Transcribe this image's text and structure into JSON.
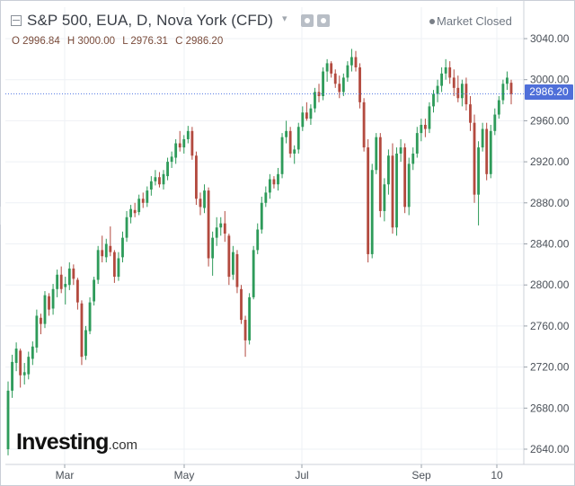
{
  "header": {
    "title": "S&P 500, EUA, D, Nova York (CFD)",
    "status": "Market Closed"
  },
  "ohlc": {
    "open": "O 2996.84",
    "high": "H 3000.00",
    "low": "L 2976.31",
    "close": "C 2986.20"
  },
  "last_price_label": "2986.20",
  "logo": {
    "main": "Investing",
    "suffix": ".com"
  },
  "colors": {
    "up": "#2e9b5a",
    "down": "#b34a3f",
    "grid": "#eef1f5",
    "last_price_line": "#5b7ee5",
    "badge": "#4f6fd9"
  },
  "chart_data": {
    "type": "candlestick",
    "title": "S&P 500, EUA, D, Nova York (CFD)",
    "ylim": [
      2630,
      3060
    ],
    "y_ticks": [
      3040,
      3000,
      2960,
      2920,
      2880,
      2840,
      2800,
      2760,
      2720,
      2680,
      2640
    ],
    "y_tick_labels": [
      "3040.00",
      "3000.00",
      "2960.00",
      "2920.00",
      "2880.00",
      "2840.00",
      "2800.00",
      "2760.00",
      "2720.00",
      "2680.00",
      "2640.00"
    ],
    "x_ticks": [
      "Mar",
      "May",
      "Jul",
      "Sep",
      "10"
    ],
    "grid": true,
    "last_close": 2986.2,
    "ohlc": [
      [
        2640,
        2706,
        2634,
        2697
      ],
      [
        2697,
        2732,
        2690,
        2725
      ],
      [
        2724,
        2744,
        2716,
        2738
      ],
      [
        2736,
        2738,
        2700,
        2712
      ],
      [
        2712,
        2724,
        2703,
        2715
      ],
      [
        2713,
        2735,
        2708,
        2730
      ],
      [
        2728,
        2745,
        2722,
        2740
      ],
      [
        2739,
        2776,
        2734,
        2770
      ],
      [
        2768,
        2772,
        2752,
        2762
      ],
      [
        2762,
        2794,
        2758,
        2790
      ],
      [
        2789,
        2792,
        2770,
        2776
      ],
      [
        2777,
        2801,
        2771,
        2796
      ],
      [
        2796,
        2815,
        2788,
        2810
      ],
      [
        2810,
        2818,
        2792,
        2796
      ],
      [
        2798,
        2808,
        2781,
        2801
      ],
      [
        2800,
        2822,
        2795,
        2816
      ],
      [
        2816,
        2820,
        2800,
        2806
      ],
      [
        2805,
        2807,
        2776,
        2783
      ],
      [
        2782,
        2785,
        2722,
        2730
      ],
      [
        2731,
        2760,
        2727,
        2756
      ],
      [
        2755,
        2788,
        2752,
        2783
      ],
      [
        2784,
        2808,
        2780,
        2805
      ],
      [
        2805,
        2838,
        2801,
        2834
      ],
      [
        2834,
        2848,
        2822,
        2828
      ],
      [
        2827,
        2845,
        2822,
        2840
      ],
      [
        2838,
        2857,
        2828,
        2832
      ],
      [
        2832,
        2834,
        2802,
        2808
      ],
      [
        2808,
        2832,
        2804,
        2826
      ],
      [
        2827,
        2852,
        2822,
        2846
      ],
      [
        2846,
        2872,
        2842,
        2866
      ],
      [
        2866,
        2878,
        2860,
        2874
      ],
      [
        2873,
        2880,
        2866,
        2870
      ],
      [
        2871,
        2888,
        2868,
        2884
      ],
      [
        2884,
        2890,
        2875,
        2880
      ],
      [
        2880,
        2896,
        2876,
        2892
      ],
      [
        2893,
        2906,
        2887,
        2901
      ],
      [
        2901,
        2912,
        2897,
        2905
      ],
      [
        2905,
        2910,
        2895,
        2898
      ],
      [
        2898,
        2912,
        2893,
        2908
      ],
      [
        2906,
        2924,
        2902,
        2920
      ],
      [
        2920,
        2930,
        2914,
        2925
      ],
      [
        2924,
        2942,
        2918,
        2938
      ],
      [
        2938,
        2950,
        2930,
        2934
      ],
      [
        2934,
        2946,
        2928,
        2942
      ],
      [
        2942,
        2955,
        2938,
        2950
      ],
      [
        2950,
        2954,
        2922,
        2926
      ],
      [
        2926,
        2930,
        2878,
        2884
      ],
      [
        2884,
        2890,
        2868,
        2876
      ],
      [
        2875,
        2898,
        2870,
        2892
      ],
      [
        2892,
        2895,
        2818,
        2826
      ],
      [
        2826,
        2852,
        2809,
        2846
      ],
      [
        2846,
        2866,
        2838,
        2856
      ],
      [
        2856,
        2866,
        2848,
        2860
      ],
      [
        2860,
        2872,
        2842,
        2850
      ],
      [
        2848,
        2850,
        2800,
        2808
      ],
      [
        2810,
        2838,
        2805,
        2832
      ],
      [
        2830,
        2834,
        2792,
        2798
      ],
      [
        2796,
        2800,
        2762,
        2766
      ],
      [
        2766,
        2770,
        2730,
        2746
      ],
      [
        2746,
        2792,
        2742,
        2788
      ],
      [
        2788,
        2838,
        2786,
        2834
      ],
      [
        2834,
        2860,
        2830,
        2854
      ],
      [
        2854,
        2886,
        2850,
        2880
      ],
      [
        2880,
        2896,
        2876,
        2890
      ],
      [
        2890,
        2908,
        2884,
        2903
      ],
      [
        2903,
        2906,
        2894,
        2898
      ],
      [
        2898,
        2914,
        2892,
        2908
      ],
      [
        2908,
        2948,
        2904,
        2944
      ],
      [
        2944,
        2960,
        2938,
        2950
      ],
      [
        2950,
        2954,
        2924,
        2928
      ],
      [
        2928,
        2936,
        2918,
        2932
      ],
      [
        2932,
        2958,
        2928,
        2954
      ],
      [
        2954,
        2974,
        2950,
        2968
      ],
      [
        2968,
        2978,
        2960,
        2962
      ],
      [
        2962,
        2976,
        2956,
        2972
      ],
      [
        2972,
        2992,
        2968,
        2988
      ],
      [
        2988,
        2996,
        2978,
        2984
      ],
      [
        2984,
        3012,
        2980,
        3008
      ],
      [
        3008,
        3020,
        2998,
        3016
      ],
      [
        3016,
        3018,
        3002,
        3006
      ],
      [
        3006,
        3010,
        2992,
        2996
      ],
      [
        2996,
        3004,
        2982,
        2988
      ],
      [
        2988,
        3006,
        2984,
        3002
      ],
      [
        3002,
        3018,
        2998,
        3014
      ],
      [
        3014,
        3030,
        3008,
        3022
      ],
      [
        3022,
        3028,
        3008,
        3012
      ],
      [
        3012,
        3016,
        2972,
        2978
      ],
      [
        2978,
        2982,
        2930,
        2934
      ],
      [
        2934,
        2942,
        2822,
        2830
      ],
      [
        2830,
        2918,
        2826,
        2912
      ],
      [
        2912,
        2948,
        2908,
        2944
      ],
      [
        2944,
        2948,
        2866,
        2872
      ],
      [
        2872,
        2904,
        2862,
        2898
      ],
      [
        2898,
        2932,
        2888,
        2926
      ],
      [
        2926,
        2938,
        2850,
        2856
      ],
      [
        2856,
        2934,
        2848,
        2928
      ],
      [
        2928,
        2942,
        2920,
        2934
      ],
      [
        2934,
        2938,
        2870,
        2876
      ],
      [
        2876,
        2924,
        2868,
        2918
      ],
      [
        2918,
        2934,
        2912,
        2928
      ],
      [
        2928,
        2954,
        2924,
        2948
      ],
      [
        2948,
        2962,
        2940,
        2956
      ],
      [
        2956,
        2962,
        2944,
        2952
      ],
      [
        2952,
        2978,
        2948,
        2974
      ],
      [
        2974,
        2990,
        2968,
        2986
      ],
      [
        2986,
        3000,
        2978,
        2994
      ],
      [
        2994,
        3012,
        2988,
        3006
      ],
      [
        3006,
        3020,
        3000,
        3012
      ],
      [
        3012,
        3018,
        2996,
        3002
      ],
      [
        3002,
        3010,
        2984,
        2992
      ],
      [
        2992,
        3004,
        2978,
        2982
      ],
      [
        2982,
        3000,
        2974,
        2996
      ],
      [
        2996,
        3002,
        2970,
        2976
      ],
      [
        2976,
        2984,
        2950,
        2958
      ],
      [
        2958,
        2966,
        2880,
        2888
      ],
      [
        2888,
        2940,
        2858,
        2934
      ],
      [
        2934,
        2958,
        2930,
        2952
      ],
      [
        2952,
        2958,
        2902,
        2908
      ],
      [
        2908,
        2956,
        2904,
        2950
      ],
      [
        2950,
        2972,
        2946,
        2966
      ],
      [
        2966,
        2984,
        2962,
        2980
      ],
      [
        2980,
        3000,
        2976,
        2996
      ],
      [
        2996,
        3008,
        2990,
        3002
      ],
      [
        2997,
        3000,
        2976,
        2986
      ]
    ]
  }
}
